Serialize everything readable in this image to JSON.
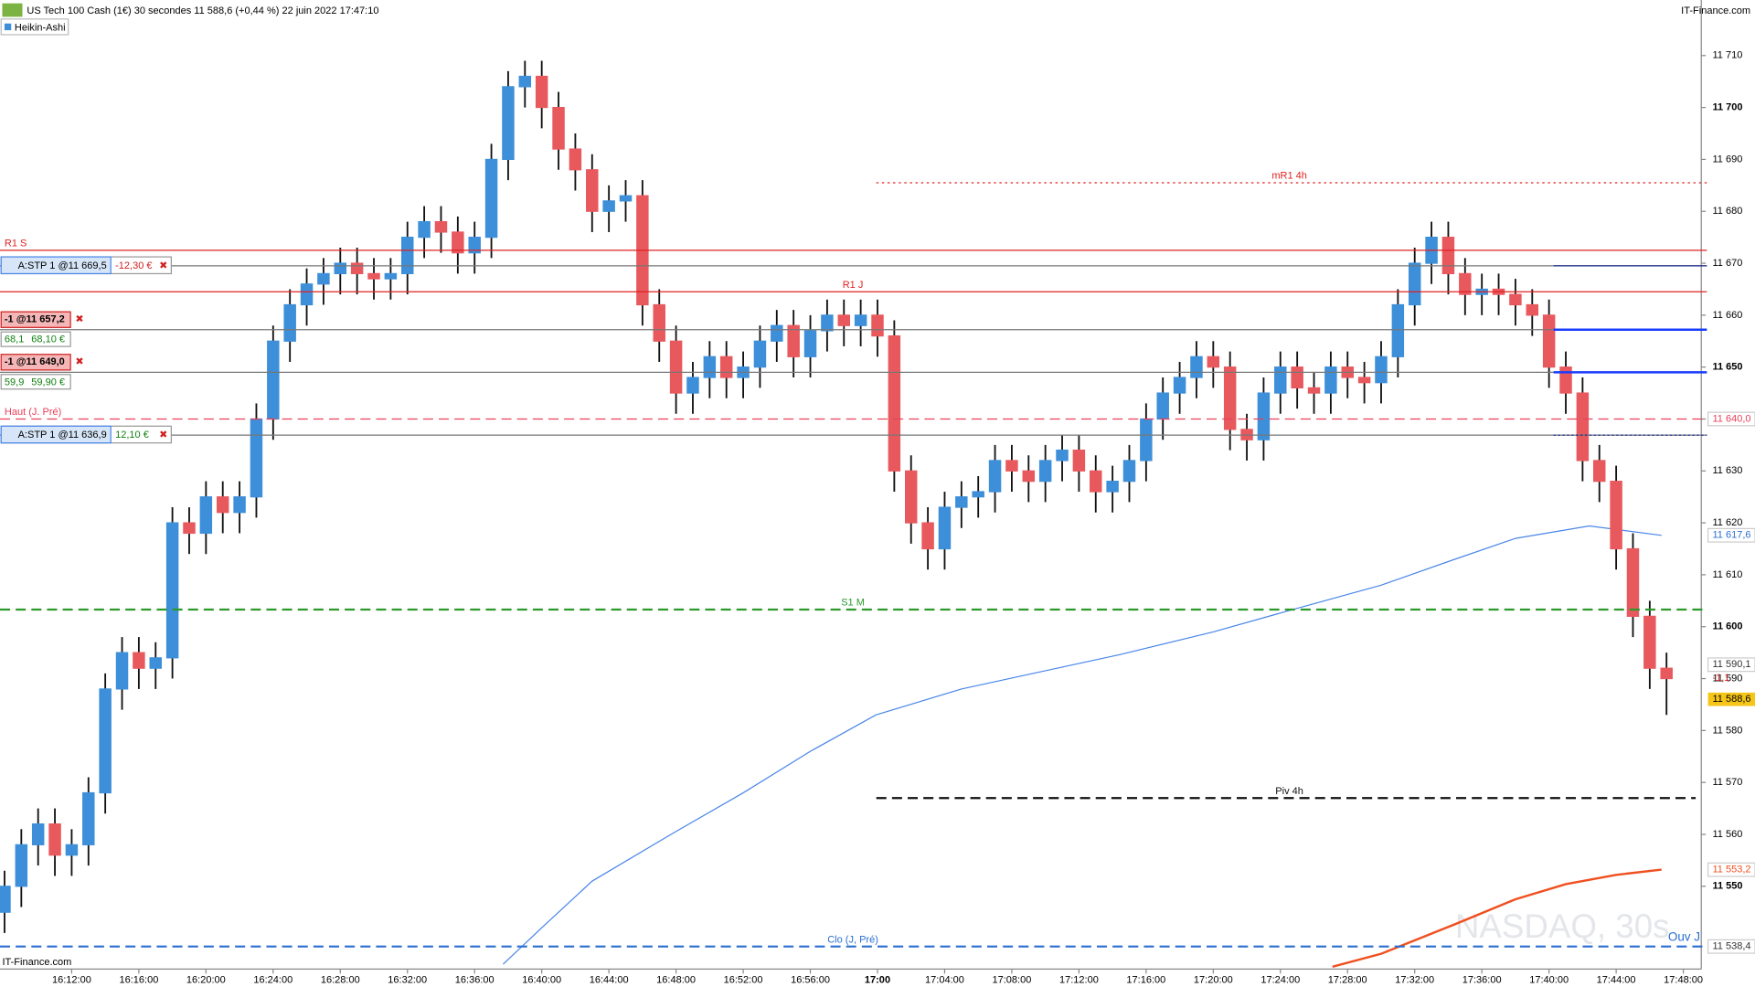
{
  "header": {
    "title": "US Tech 100 Cash (1€) 30 secondes 11 588,6 (+0,44 %) 22 juin 2022 17:47:10",
    "brand": "IT-Finance.com",
    "chart_style": "Heikin-Ashi"
  },
  "footer": {
    "brand": "IT-Finance.com",
    "watermark": "NASDAQ, 30s"
  },
  "chart_data": {
    "type": "candlestick",
    "up_color": "#3d8fd9",
    "down_color": "#e8595e",
    "xlim": [
      7.73,
      109.07
    ],
    "xticks": [
      {
        "value": 12,
        "label": "16:12:00"
      },
      {
        "value": 16,
        "label": "16:16:00"
      },
      {
        "value": 20,
        "label": "16:20:00"
      },
      {
        "value": 24,
        "label": "16:24:00"
      },
      {
        "value": 28,
        "label": "16:28:00"
      },
      {
        "value": 32,
        "label": "16:32:00"
      },
      {
        "value": 36,
        "label": "16:36:00"
      },
      {
        "value": 40,
        "label": "16:40:00"
      },
      {
        "value": 44,
        "label": "16:44:00"
      },
      {
        "value": 48,
        "label": "16:48:00"
      },
      {
        "value": 52,
        "label": "16:52:00"
      },
      {
        "value": 56,
        "label": "16:56:00"
      },
      {
        "value": 60,
        "label": "17:00"
      },
      {
        "value": 64,
        "label": "17:04:00"
      },
      {
        "value": 68,
        "label": "17:08:00"
      },
      {
        "value": 72,
        "label": "17:12:00"
      },
      {
        "value": 76,
        "label": "17:16:00"
      },
      {
        "value": 80,
        "label": "17:20:00"
      },
      {
        "value": 84,
        "label": "17:24:00"
      },
      {
        "value": 88,
        "label": "17:28:00"
      },
      {
        "value": 92,
        "label": "17:32:00"
      },
      {
        "value": 96,
        "label": "17:36:00"
      },
      {
        "value": 100,
        "label": "17:40:00"
      },
      {
        "value": 104,
        "label": "17:44:00"
      },
      {
        "value": 108,
        "label": "17:48:00"
      }
    ],
    "ylim": [
      11534.05,
      11720.7
    ],
    "yticks": [
      {
        "value": 11550,
        "label": "11 550"
      },
      {
        "value": 11560,
        "label": "11 560"
      },
      {
        "value": 11570,
        "label": "11 570"
      },
      {
        "value": 11580,
        "label": "11 580"
      },
      {
        "value": 11590,
        "label": "11 590"
      },
      {
        "value": 11600,
        "label": "11 600"
      },
      {
        "value": 11610,
        "label": "11 610"
      },
      {
        "value": 11620,
        "label": "11 620"
      },
      {
        "value": 11630,
        "label": "11 630"
      },
      {
        "value": 11640,
        "label": "11 640"
      },
      {
        "value": 11650,
        "label": "11 650"
      },
      {
        "value": 11660,
        "label": "11 660"
      },
      {
        "value": 11670,
        "label": "11 670"
      },
      {
        "value": 11680,
        "label": "11 680"
      },
      {
        "value": 11690,
        "label": "11 690"
      },
      {
        "value": 11700,
        "label": "11 700"
      },
      {
        "value": 11710,
        "label": "11 710"
      }
    ],
    "x": [
      8,
      9,
      10,
      11,
      12,
      13,
      14,
      15,
      16,
      17,
      18,
      19,
      20,
      21,
      22,
      23,
      24,
      25,
      26,
      27,
      28,
      29,
      30,
      31,
      32,
      33,
      34,
      35,
      36,
      37,
      38,
      39,
      40,
      41,
      42,
      43,
      44,
      45,
      46,
      47,
      48,
      49,
      50,
      51,
      52,
      53,
      54,
      55,
      56,
      57,
      58,
      59,
      60,
      61,
      62,
      63,
      64,
      65,
      66,
      67,
      68,
      69,
      70,
      71,
      72,
      73,
      74,
      75,
      76,
      77,
      78,
      79,
      80,
      81,
      82,
      83,
      84,
      85,
      86,
      87,
      88,
      89,
      90,
      91,
      92,
      93,
      94,
      95,
      96,
      97,
      98,
      99,
      100,
      101,
      102,
      103,
      104,
      105,
      106,
      107
    ],
    "open": [
      11545,
      11550,
      11558,
      11562,
      11556,
      11558,
      11568,
      11588,
      11595,
      11592,
      11594,
      11620,
      11618,
      11625,
      11622,
      11625,
      11640,
      11655,
      11662,
      11666,
      11668,
      11670,
      11668,
      11667,
      11668,
      11675,
      11678,
      11676,
      11672,
      11675,
      11690,
      11704,
      11706,
      11700,
      11692,
      11688,
      11680,
      11682,
      11683,
      11662,
      11655,
      11645,
      11648,
      11652,
      11648,
      11650,
      11655,
      11658,
      11652,
      11657,
      11660,
      11658,
      11660,
      11656,
      11630,
      11620,
      11615,
      11623,
      11625,
      11626,
      11632,
      11630,
      11628,
      11632,
      11634,
      11630,
      11626,
      11628,
      11632,
      11640,
      11645,
      11648,
      11652,
      11650,
      11638,
      11636,
      11645,
      11650,
      11646,
      11645,
      11650,
      11648,
      11647,
      11652,
      11662,
      11670,
      11675,
      11668,
      11664,
      11665,
      11664,
      11662,
      11660,
      11650,
      11645,
      11632,
      11628,
      11615,
      11602,
      11592
    ],
    "high": [
      11553,
      11561,
      11565,
      11565,
      11561,
      11571,
      11591,
      11598,
      11598,
      11597,
      11623,
      11623,
      11628,
      11628,
      11628,
      11643,
      11658,
      11665,
      11669,
      11671,
      11673,
      11673,
      11671,
      11671,
      11678,
      11681,
      11681,
      11679,
      11678,
      11693,
      11707,
      11709,
      11709,
      11703,
      11695,
      11691,
      11685,
      11686,
      11686,
      11665,
      11658,
      11651,
      11655,
      11655,
      11653,
      11658,
      11661,
      11661,
      11660,
      11663,
      11663,
      11663,
      11663,
      11659,
      11633,
      11623,
      11626,
      11628,
      11629,
      11635,
      11635,
      11633,
      11635,
      11637,
      11637,
      11633,
      11631,
      11635,
      11643,
      11648,
      11651,
      11655,
      11655,
      11653,
      11641,
      11648,
      11653,
      11653,
      11649,
      11653,
      11653,
      11651,
      11655,
      11665,
      11673,
      11678,
      11678,
      11671,
      11668,
      11668,
      11667,
      11665,
      11663,
      11653,
      11648,
      11635,
      11631,
      11618,
      11605,
      11595
    ],
    "low": [
      11541,
      11546,
      11554,
      11552,
      11552,
      11554,
      11564,
      11584,
      11588,
      11588,
      11590,
      11614,
      11614,
      11618,
      11618,
      11621,
      11636,
      11651,
      11658,
      11662,
      11664,
      11664,
      11663,
      11663,
      11664,
      11671,
      11672,
      11668,
      11668,
      11671,
      11686,
      11700,
      11696,
      11688,
      11684,
      11676,
      11676,
      11678,
      11658,
      11651,
      11641,
      11641,
      11644,
      11644,
      11644,
      11646,
      11651,
      11648,
      11648,
      11653,
      11654,
      11654,
      11652,
      11626,
      11616,
      11611,
      11611,
      11619,
      11621,
      11622,
      11626,
      11624,
      11624,
      11628,
      11626,
      11622,
      11622,
      11624,
      11628,
      11636,
      11641,
      11644,
      11646,
      11634,
      11632,
      11632,
      11641,
      11642,
      11641,
      11641,
      11644,
      11643,
      11643,
      11648,
      11658,
      11666,
      11664,
      11660,
      11660,
      11660,
      11658,
      11656,
      11646,
      11641,
      11628,
      11624,
      11611,
      11598,
      11588,
      11583
    ],
    "close": [
      11550,
      11558,
      11562,
      11556,
      11558,
      11568,
      11588,
      11595,
      11592,
      11594,
      11620,
      11618,
      11625,
      11622,
      11625,
      11640,
      11655,
      11662,
      11666,
      11668,
      11670,
      11668,
      11667,
      11668,
      11675,
      11678,
      11676,
      11672,
      11675,
      11690,
      11704,
      11706,
      11700,
      11692,
      11688,
      11680,
      11682,
      11683,
      11662,
      11655,
      11645,
      11648,
      11652,
      11648,
      11650,
      11655,
      11658,
      11652,
      11657,
      11660,
      11658,
      11660,
      11656,
      11630,
      11620,
      11615,
      11623,
      11625,
      11626,
      11632,
      11630,
      11628,
      11632,
      11634,
      11630,
      11626,
      11628,
      11632,
      11640,
      11645,
      11648,
      11652,
      11650,
      11638,
      11636,
      11645,
      11650,
      11646,
      11645,
      11650,
      11648,
      11647,
      11652,
      11662,
      11670,
      11675,
      11668,
      11664,
      11665,
      11664,
      11662,
      11660,
      11650,
      11645,
      11632,
      11628,
      11615,
      11602,
      11592,
      11590
    ],
    "ma_lines": [
      {
        "color": "#4a86e8",
        "x": [
          37.7,
          40,
          43,
          47.7,
          52,
          56,
          59.9,
          65,
          70,
          74.4,
          80,
          84.4,
          90,
          94.4,
          98,
          102.4,
          106.7
        ],
        "values": [
          11535,
          11542,
          11551,
          11560,
          11568,
          11576,
          11583,
          11588,
          11591.5,
          11594.6,
          11599,
          11603,
          11608,
          11613,
          11617,
          11619.4,
          11617.6
        ]
      },
      {
        "color": "#f05020",
        "x": [
          87.1,
          90,
          94.4,
          98,
          101,
          104,
          106.7
        ],
        "values": [
          11534.5,
          11537,
          11542.7,
          11547.5,
          11550.4,
          11552.2,
          11553.2
        ]
      }
    ],
    "levels": [
      {
        "label": "mR1 4h",
        "value": 11685.5,
        "color": "#e02020",
        "style": "dotted"
      },
      {
        "label": "R1 S",
        "value": 11672.5,
        "color": "#e02020",
        "style": "solid"
      },
      {
        "label": "R1 J",
        "value": 11664.5,
        "color": "#e02020",
        "style": "solid"
      },
      {
        "label": "Haut (J. Pré)",
        "value": 11640,
        "color": "#e8405a",
        "style": "dashed"
      },
      {
        "label": "S1 M",
        "value": 11603.3,
        "color": "#2a9a2a",
        "style": "dashed"
      },
      {
        "label": "Piv 4h",
        "value": 11567,
        "color": "#111111",
        "style": "dashed"
      },
      {
        "label": "Clo (J, Pré)",
        "value": 11538.4,
        "color": "#2a6fd0",
        "style": "dashed"
      }
    ],
    "open_label": "Ouv J",
    "orders": [
      {
        "label": "A:STP 1 @11 669,5",
        "value": 11669.5,
        "pnl": "-12,30 €"
      },
      {
        "label": "-1 @11 657,2",
        "value": 11657.2,
        "points": "68,1",
        "pnl": "68,10 €"
      },
      {
        "label": "-1 @11 649,0",
        "value": 11649.0,
        "points": "59,9",
        "pnl": "59,90 €"
      },
      {
        "label": "A:STP 1 @11 636,9",
        "value": 11636.9,
        "pnl": "12,10 €"
      }
    ],
    "price_labels": [
      {
        "value": 11640,
        "label": "11 640,0",
        "color": "#e8405a"
      },
      {
        "value": 11617.6,
        "label": "11 617,6",
        "color": "#2a6fd0"
      },
      {
        "value": 11590.1,
        "label": "11 590,1",
        "color": "#333333"
      },
      {
        "value": 11588.6,
        "label": "11 588,6",
        "color": "#000000",
        "bg": "#f5c518"
      },
      {
        "value": 11553.2,
        "label": "11 553,2",
        "color": "#f05020"
      },
      {
        "value": 11538.4,
        "label": "11 538,4",
        "color": "#333333"
      }
    ],
    "spread_label": "-1,1"
  }
}
